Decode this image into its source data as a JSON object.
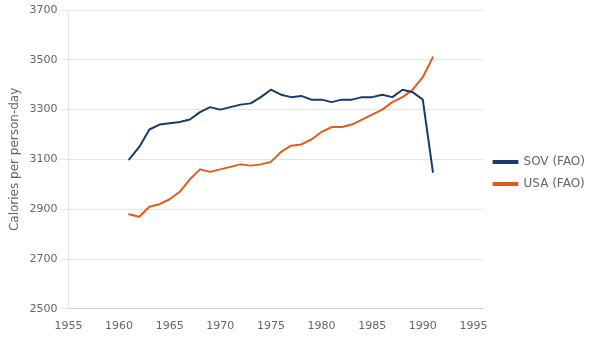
{
  "chart_data": {
    "type": "line",
    "y_label": "Calories per person-day",
    "x": [
      1961,
      1962,
      1963,
      1964,
      1965,
      1966,
      1967,
      1968,
      1969,
      1970,
      1971,
      1972,
      1973,
      1974,
      1975,
      1976,
      1977,
      1978,
      1979,
      1980,
      1981,
      1982,
      1983,
      1984,
      1985,
      1986,
      1987,
      1988,
      1989,
      1990,
      1991
    ],
    "series": [
      {
        "name": "SOV (FAO)",
        "color": "#1a3a6b",
        "values": [
          3100,
          3150,
          3220,
          3240,
          3245,
          3250,
          3260,
          3290,
          3310,
          3300,
          3310,
          3320,
          3325,
          3350,
          3380,
          3360,
          3350,
          3355,
          3340,
          3340,
          3330,
          3340,
          3340,
          3350,
          3350,
          3360,
          3350,
          3380,
          3370,
          3340,
          3050
        ]
      },
      {
        "name": "USA (FAO)",
        "color": "#e05c1a",
        "values": [
          2880,
          2870,
          2910,
          2920,
          2940,
          2970,
          3020,
          3060,
          3050,
          3060,
          3070,
          3080,
          3075,
          3080,
          3090,
          3130,
          3155,
          3160,
          3180,
          3210,
          3230,
          3230,
          3240,
          3260,
          3280,
          3300,
          3330,
          3350,
          3380,
          3430,
          3510
        ]
      }
    ],
    "xlim": [
      1955,
      1996
    ],
    "ylim": [
      2500,
      3700
    ],
    "xticks": [
      1955,
      1960,
      1965,
      1970,
      1975,
      1980,
      1985,
      1990,
      1995
    ],
    "yticks": [
      2500,
      2700,
      2900,
      3100,
      3300,
      3500,
      3700
    ],
    "grid": "y",
    "legend": "right"
  }
}
